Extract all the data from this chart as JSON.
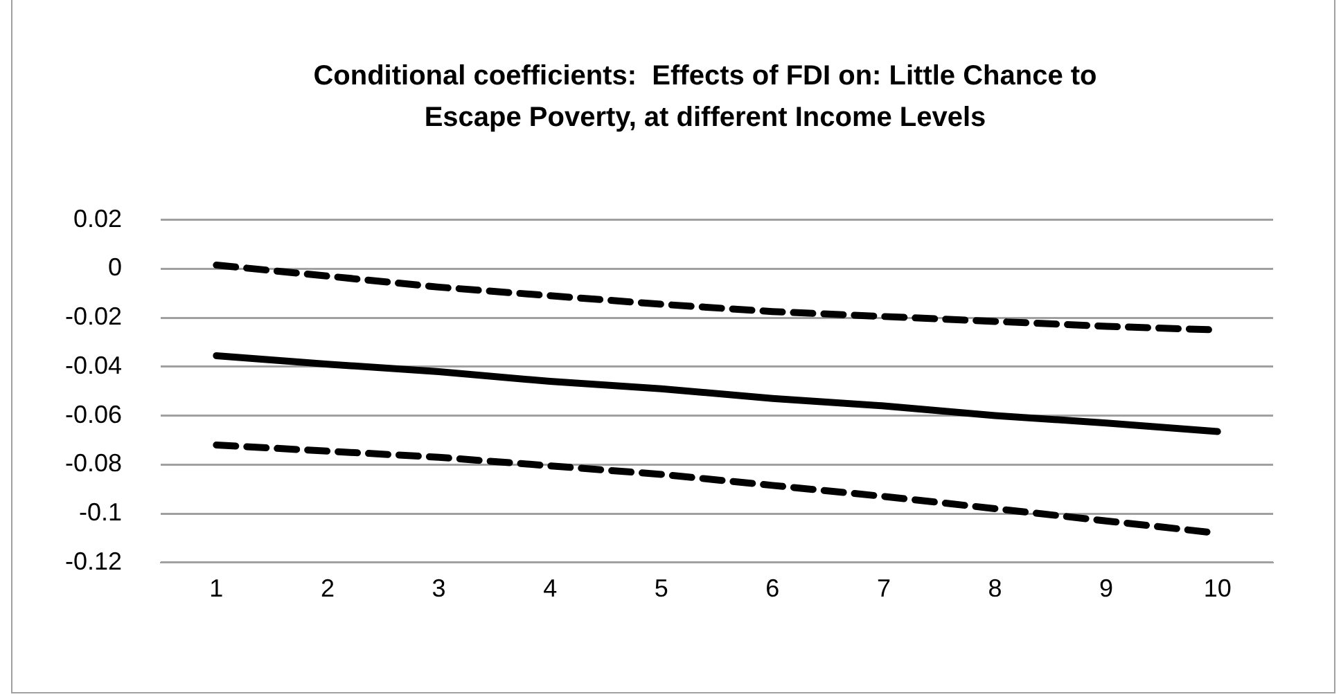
{
  "chart_data": {
    "type": "line",
    "title": "Conditional coefficients:  Effects of FDI on: Little Chance to Escape Poverty, at different Income Levels",
    "categories": [
      "1",
      "2",
      "3",
      "4",
      "5",
      "6",
      "7",
      "8",
      "9",
      "10"
    ],
    "series": [
      {
        "color": "#000000",
        "line_style": "dashed",
        "values": [
          0.0015,
          -0.003,
          -0.0075,
          -0.011,
          -0.0145,
          -0.0175,
          -0.0195,
          -0.0215,
          -0.0235,
          -0.025
        ]
      },
      {
        "color": "#000000",
        "line_style": "solid",
        "values": [
          -0.0355,
          -0.039,
          -0.042,
          -0.046,
          -0.049,
          -0.053,
          -0.056,
          -0.06,
          -0.063,
          -0.0665
        ]
      },
      {
        "color": "#000000",
        "line_style": "dashed",
        "values": [
          -0.072,
          -0.0745,
          -0.077,
          -0.0805,
          -0.084,
          -0.0885,
          -0.093,
          -0.098,
          -0.103,
          -0.108
        ]
      }
    ],
    "ylim": [
      -0.12,
      0.02
    ],
    "yticks": [
      0.02,
      0,
      -0.02,
      -0.04,
      -0.06,
      -0.08,
      -0.1,
      -0.12
    ],
    "grid": "y",
    "legend": false,
    "marker": "none"
  }
}
